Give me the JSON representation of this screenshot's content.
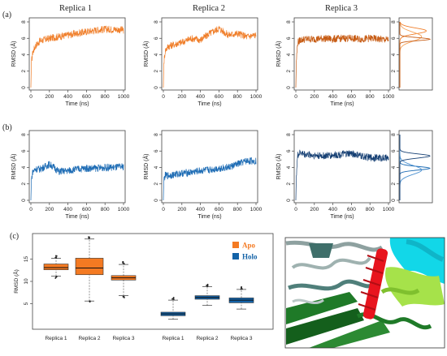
{
  "panel_labels": [
    "(a)",
    "(b)",
    "(c)"
  ],
  "replica_titles": [
    "Replica 1",
    "Replica 2",
    "Replica 3"
  ],
  "axis": {
    "ylabel": "RMSD (Å)",
    "xlabel": "Time (ns)",
    "x_ticks": [
      0,
      200,
      400,
      600,
      800,
      1000
    ],
    "y_ticks": [
      0,
      2,
      4,
      6,
      8
    ]
  },
  "colors": {
    "apo_line": "#f07f2b",
    "apo_dark": "#c75c14",
    "holo_line": "#1f6db5",
    "holo_dark": "#153f73",
    "apo_box": "#f47a22",
    "holo_box": "#1463a8"
  },
  "legend": {
    "apo": "Apo",
    "holo": "Holo"
  },
  "chart_data": [
    {
      "type": "line",
      "panel": "(a)",
      "title": "Replica 1",
      "xlabel": "Time (ns)",
      "ylabel": "RMSD (Å)",
      "xlim": [
        0,
        1000
      ],
      "ylim": [
        0,
        8
      ],
      "profile": {
        "x": [
          0,
          5,
          20,
          50,
          100,
          200,
          300,
          400,
          500,
          600,
          700,
          800,
          900,
          1000
        ],
        "y": [
          0,
          3.0,
          4.3,
          5.1,
          5.7,
          6.0,
          6.2,
          6.4,
          6.6,
          6.8,
          7.0,
          7.1,
          7.1,
          7.0
        ]
      }
    },
    {
      "type": "line",
      "panel": "(a)",
      "title": "Replica 2",
      "xlabel": "Time (ns)",
      "ylabel": "RMSD (Å)",
      "xlim": [
        0,
        1000
      ],
      "ylim": [
        0,
        8
      ],
      "profile": {
        "x": [
          0,
          5,
          20,
          50,
          100,
          200,
          300,
          400,
          500,
          600,
          700,
          800,
          900,
          1000
        ],
        "y": [
          0,
          3.0,
          4.5,
          5.0,
          5.2,
          5.5,
          6.0,
          5.8,
          6.6,
          7.2,
          6.4,
          6.6,
          6.2,
          6.4
        ]
      }
    },
    {
      "type": "line",
      "panel": "(a)",
      "title": "Replica 3",
      "xlabel": "Time (ns)",
      "ylabel": "RMSD (Å)",
      "xlim": [
        0,
        1000
      ],
      "ylim": [
        0,
        8
      ],
      "profile": {
        "x": [
          0,
          5,
          20,
          50,
          100,
          200,
          300,
          400,
          500,
          600,
          700,
          800,
          900,
          1000
        ],
        "y": [
          0,
          3.2,
          5.5,
          5.8,
          5.9,
          5.9,
          6.0,
          5.9,
          6.0,
          6.0,
          5.9,
          6.0,
          5.9,
          5.8
        ]
      }
    },
    {
      "type": "line",
      "panel": "(b)",
      "title": "Replica 1",
      "xlabel": "Time (ns)",
      "ylabel": "RMSD (Å)",
      "xlim": [
        0,
        1000
      ],
      "ylim": [
        0,
        8
      ],
      "profile": {
        "x": [
          0,
          5,
          20,
          50,
          100,
          200,
          250,
          300,
          400,
          500,
          600,
          700,
          800,
          900,
          1000
        ],
        "y": [
          0,
          2.5,
          3.5,
          3.8,
          3.8,
          4.4,
          4.0,
          3.5,
          3.6,
          3.8,
          3.9,
          3.9,
          4.0,
          4.0,
          4.1
        ]
      }
    },
    {
      "type": "line",
      "panel": "(b)",
      "title": "Replica 2",
      "xlabel": "Time (ns)",
      "ylabel": "RMSD (Å)",
      "xlim": [
        0,
        1000
      ],
      "ylim": [
        0,
        8
      ],
      "profile": {
        "x": [
          0,
          5,
          20,
          50,
          100,
          200,
          300,
          400,
          500,
          600,
          700,
          800,
          900,
          1000
        ],
        "y": [
          0,
          2.5,
          3.0,
          3.0,
          3.1,
          3.3,
          3.4,
          3.6,
          3.7,
          3.9,
          4.0,
          4.4,
          4.8,
          4.8
        ]
      }
    },
    {
      "type": "line",
      "panel": "(b)",
      "title": "Replica 3",
      "xlabel": "Time (ns)",
      "ylabel": "RMSD (Å)",
      "xlim": [
        0,
        1000
      ],
      "ylim": [
        0,
        8
      ],
      "profile": {
        "x": [
          0,
          5,
          20,
          50,
          100,
          200,
          300,
          400,
          500,
          600,
          700,
          800,
          900,
          1000
        ],
        "y": [
          0,
          3.0,
          5.5,
          5.8,
          5.6,
          5.5,
          5.4,
          5.5,
          5.6,
          5.7,
          5.4,
          5.2,
          5.2,
          5.1
        ]
      }
    },
    {
      "type": "area",
      "panel": "(a)",
      "title": "Apo RMSD density",
      "orientation": "horizontal",
      "ylim": [
        0,
        8
      ],
      "series": [
        {
          "color": "#f07f2b",
          "peak": 6.9,
          "sd": 0.35
        },
        {
          "color": "#f5a35a",
          "peak": 6.2,
          "sd": 0.55
        },
        {
          "color": "#c75c14",
          "peak": 5.9,
          "sd": 0.18
        }
      ]
    },
    {
      "type": "area",
      "panel": "(b)",
      "title": "Holo RMSD density",
      "orientation": "horizontal",
      "ylim": [
        0,
        8
      ],
      "series": [
        {
          "color": "#1f6db5",
          "peak": 3.9,
          "sd": 0.22
        },
        {
          "color": "#4a90d0",
          "peak": 3.7,
          "sd": 0.55
        },
        {
          "color": "#153f73",
          "peak": 5.4,
          "sd": 0.25
        }
      ]
    },
    {
      "type": "box",
      "panel": "(c)",
      "ylabel": "RMSD (Å)",
      "ylim": [
        0,
        20
      ],
      "categories": [
        "Replica 1",
        "Replica 2",
        "Replica 3",
        "Replica 1",
        "Replica 2",
        "Replica 3"
      ],
      "y_ticks": [
        5,
        10,
        15
      ],
      "series": [
        {
          "name": "Apo",
          "boxes": [
            {
              "whisker_low": 11.2,
              "q1": 12.6,
              "median": 13.1,
              "q3": 13.9,
              "whisker_high": 15.2
            },
            {
              "whisker_low": 5.6,
              "q1": 11.5,
              "median": 13.0,
              "q3": 15.2,
              "whisker_high": 19.5
            },
            {
              "whisker_low": 6.8,
              "q1": 10.3,
              "median": 10.8,
              "q3": 11.3,
              "whisker_high": 13.8
            }
          ]
        },
        {
          "name": "Holo",
          "boxes": [
            {
              "whisker_low": 1.5,
              "q1": 2.3,
              "median": 2.7,
              "q3": 3.1,
              "whisker_high": 5.8
            },
            {
              "whisker_low": 4.6,
              "q1": 6.0,
              "median": 6.4,
              "q3": 6.8,
              "whisker_high": 8.8
            },
            {
              "whisker_low": 3.8,
              "q1": 5.2,
              "median": 5.8,
              "q3": 6.3,
              "whisker_high": 8.2
            }
          ]
        }
      ]
    }
  ]
}
